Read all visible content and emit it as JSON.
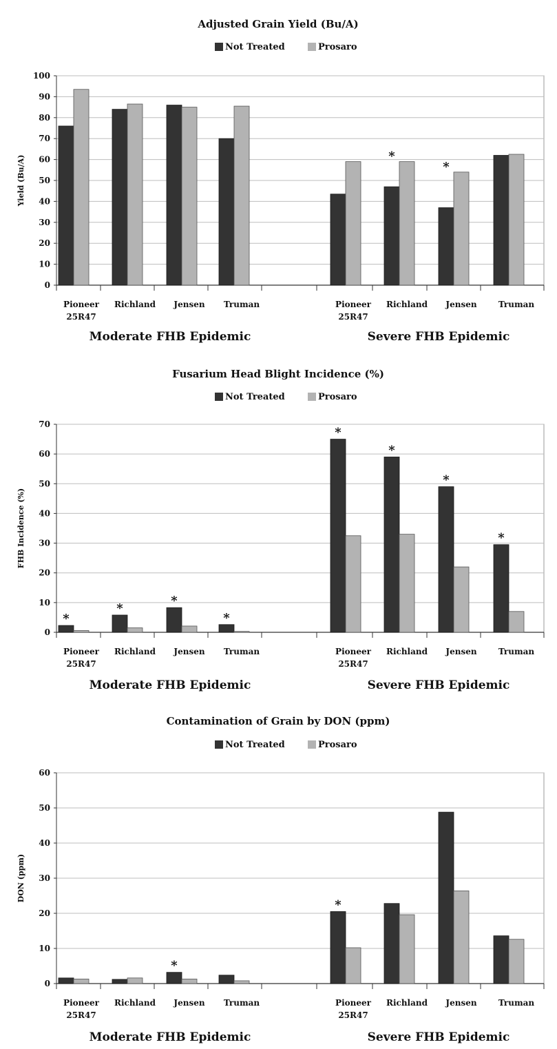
{
  "legend": {
    "not_treated": "Not Treated",
    "prosaro": "Prosaro"
  },
  "colors": {
    "not_treated": "#333333",
    "prosaro": "#b3b3b3"
  },
  "chart_data": [
    {
      "type": "bar",
      "title": "Adjusted Grain Yield (Bu/A)",
      "ylabel": "Yield (Bu/A)",
      "ylim": [
        0,
        100
      ],
      "yticks": [
        0,
        10,
        20,
        30,
        40,
        50,
        60,
        70,
        80,
        90,
        100
      ],
      "grid": true,
      "legend_position": "top-center",
      "categories": [
        "Pioneer 25R47",
        "Richland",
        "Jensen",
        "Truman",
        "Pioneer 25R47",
        "Richland",
        "Jensen",
        "Truman"
      ],
      "group_labels": [
        "Moderate FHB Epidemic",
        "Severe  FHB Epidemic"
      ],
      "series": [
        {
          "name": "Not Treated",
          "values": [
            76,
            84,
            86,
            70,
            43.5,
            47,
            37,
            62
          ]
        },
        {
          "name": "Prosaro",
          "values": [
            93.5,
            86.5,
            85,
            85.5,
            59,
            59,
            54,
            62.5
          ]
        }
      ],
      "significant": [
        false,
        false,
        false,
        false,
        false,
        true,
        true,
        false
      ]
    },
    {
      "type": "bar",
      "title": "Fusarium Head Blight Incidence (%)",
      "ylabel": "FHB Incidence (%)",
      "ylim": [
        0,
        70
      ],
      "yticks": [
        0,
        10,
        20,
        30,
        40,
        50,
        60,
        70
      ],
      "grid": true,
      "legend_position": "top-center",
      "categories": [
        "Pioneer 25R47",
        "Richland",
        "Jensen",
        "Truman",
        "Pioneer 25R47",
        "Richland",
        "Jensen",
        "Truman"
      ],
      "group_labels": [
        "Moderate FHB Epidemic",
        "Severe FHB Epidemic"
      ],
      "series": [
        {
          "name": "Not Treated",
          "values": [
            2.3,
            5.8,
            8.3,
            2.6,
            65,
            59,
            49,
            29.5
          ]
        },
        {
          "name": "Prosaro",
          "values": [
            0.6,
            1.5,
            2.1,
            0.3,
            32.5,
            33,
            22,
            7
          ]
        }
      ],
      "significant": [
        true,
        true,
        true,
        true,
        true,
        true,
        true,
        true
      ]
    },
    {
      "type": "bar",
      "title": "Contamination of Grain by DON (ppm)",
      "ylabel": "DON (ppm)",
      "ylim": [
        0,
        60
      ],
      "yticks": [
        0,
        10,
        20,
        30,
        40,
        50,
        60
      ],
      "grid": true,
      "legend_position": "top-center",
      "categories": [
        "Pioneer 25R47",
        "Richland",
        "Jensen",
        "Truman",
        "Pioneer 25R47",
        "Richland",
        "Jensen",
        "Truman"
      ],
      "group_labels": [
        "Moderate FHB Epidemic",
        "Severe FHB Epidemic"
      ],
      "series": [
        {
          "name": "Not Treated",
          "values": [
            1.6,
            1.2,
            3.2,
            2.4,
            20.5,
            22.8,
            48.8,
            13.6
          ]
        },
        {
          "name": "Prosaro",
          "values": [
            1.3,
            1.6,
            1.3,
            0.8,
            10.2,
            19.6,
            26.4,
            12.6
          ]
        }
      ],
      "significant": [
        false,
        false,
        true,
        false,
        true,
        false,
        false,
        false
      ]
    }
  ]
}
